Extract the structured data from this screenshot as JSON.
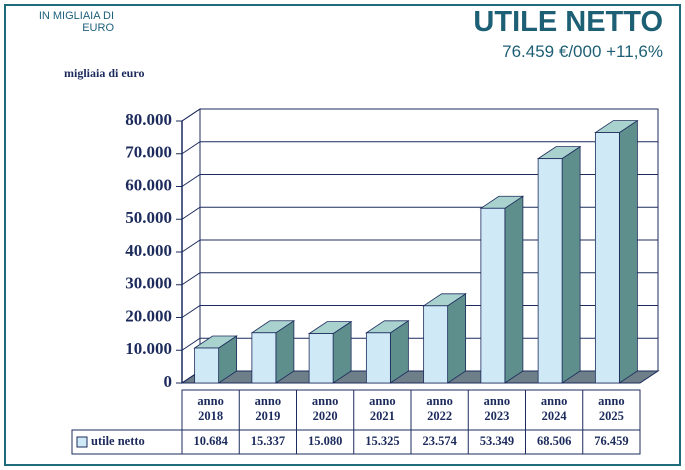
{
  "chart_data": {
    "type": "bar3d",
    "note": "IN MIGLIAIA DI EURO",
    "title": "UTILE NETTO",
    "subtitle": "76.459 €/000 +11,6%",
    "y_axis_label": "migliaia di euro",
    "categories": [
      "anno 2018",
      "anno 2019",
      "anno 2020",
      "anno 2021",
      "anno 2022",
      "anno 2023",
      "anno 2024",
      "anno 2025"
    ],
    "series": [
      {
        "name": "utile netto",
        "color": "#cfe9f6",
        "values": [
          10684,
          15337,
          15080,
          15325,
          23574,
          53349,
          68506,
          76459
        ],
        "value_labels": [
          "10.684",
          "15.337",
          "15.080",
          "15.325",
          "23.574",
          "53.349",
          "68.506",
          "76.459"
        ]
      }
    ],
    "ylim": [
      0,
      80000
    ],
    "yticks": [
      0,
      {
        "value": 10000,
        "label": "10.000"
      },
      {
        "value": 20000,
        "label": "20.000"
      },
      {
        "value": 30000,
        "label": "30.000"
      },
      {
        "value": 40000,
        "label": "40.000"
      },
      {
        "value": 50000,
        "label": "50.000"
      },
      {
        "value": 60000,
        "label": "60.000"
      },
      {
        "value": 70000,
        "label": "70.000"
      },
      {
        "value": 80000,
        "label": "80.000"
      }
    ],
    "grid": true
  }
}
